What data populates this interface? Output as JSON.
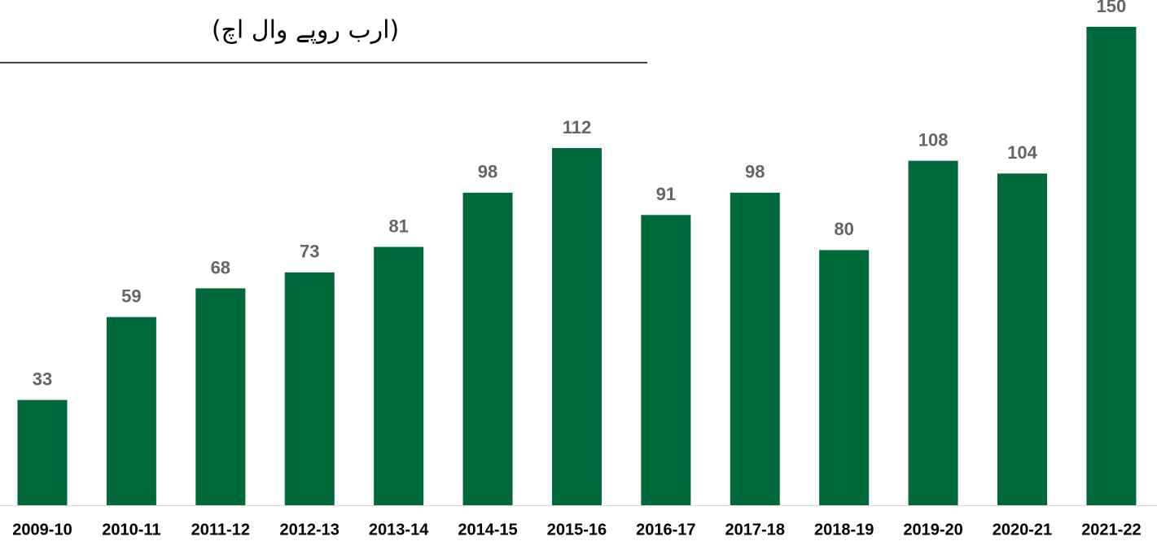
{
  "chart_data": {
    "type": "bar",
    "title": "(ارب روپے وال اچ)",
    "categories": [
      "2009-10",
      "2010-11",
      "2011-12",
      "2012-13",
      "2013-14",
      "2014-15",
      "2015-16",
      "2016-17",
      "2017-18",
      "2018-19",
      "2019-20",
      "2020-21",
      "2021-22"
    ],
    "values": [
      33,
      59,
      68,
      73,
      81,
      98,
      112,
      91,
      98,
      80,
      108,
      104,
      150
    ],
    "color": "#00693a",
    "ylim": [
      0,
      150
    ]
  }
}
